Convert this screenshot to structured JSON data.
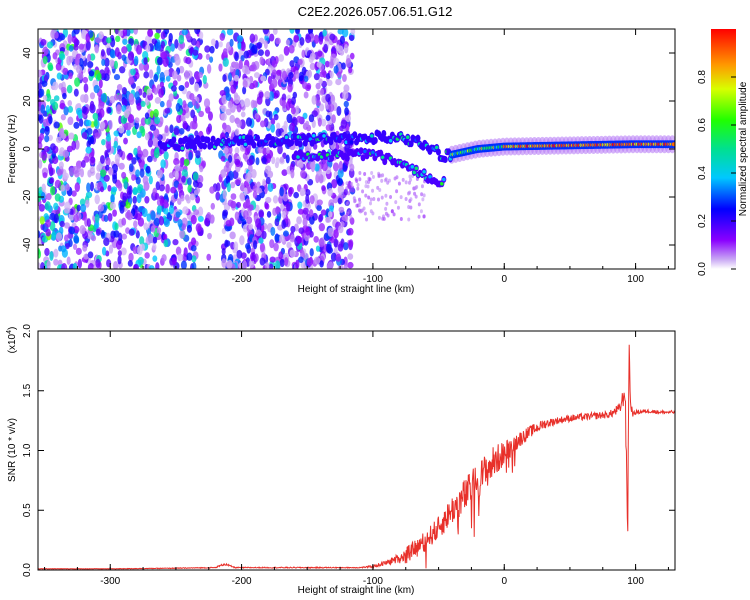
{
  "figure": {
    "title": "C2E2.2026.057.06.51.G12"
  },
  "chart_data": [
    {
      "type": "heatmap",
      "name": "spectrogram",
      "xlabel": "Height of straight line (km)",
      "ylabel": "Frequency (Hz)",
      "xlim": [
        -355,
        130
      ],
      "ylim": [
        -50,
        50
      ],
      "xticks": [
        -300,
        -200,
        -100,
        0,
        100
      ],
      "yticks": [
        -40,
        -20,
        0,
        20,
        40
      ],
      "xtick_labels": [
        "-300",
        "-200",
        "-100",
        "0",
        "100"
      ],
      "ytick_labels": [
        "-40",
        "-20",
        "0",
        "20",
        "40"
      ],
      "colorbar": {
        "label": "Normalized spectral amplitude",
        "range": [
          0,
          1
        ],
        "ticks": [
          0.0,
          0.2,
          0.4,
          0.6,
          0.8
        ],
        "tick_labels": [
          "0.0",
          "0.2",
          "0.4",
          "0.6",
          "0.8"
        ]
      },
      "features": {
        "noise_region_km": [
          -355,
          -115
        ],
        "gap_region_km": [
          -230,
          -215
        ],
        "signal_band": [
          {
            "x": -260,
            "f": 2
          },
          {
            "x": -200,
            "f": 3
          },
          {
            "x": -150,
            "f": 4
          },
          {
            "x": -100,
            "f": 5
          },
          {
            "x": -70,
            "f": 4
          },
          {
            "x": -45,
            "f": -3
          },
          {
            "x": -20,
            "f": 0
          },
          {
            "x": 0,
            "f": 1
          },
          {
            "x": 50,
            "f": 1.5
          },
          {
            "x": 100,
            "f": 2
          },
          {
            "x": 130,
            "f": 2
          }
        ],
        "split_lower_branch": [
          {
            "x": -150,
            "f": -3
          },
          {
            "x": -100,
            "f": -2
          },
          {
            "x": -70,
            "f": -8
          },
          {
            "x": -50,
            "f": -14
          }
        ],
        "tail": [
          {
            "x": -30,
            "f": -25
          },
          {
            "x": -25,
            "f": -37
          }
        ]
      }
    },
    {
      "type": "line",
      "name": "snr",
      "xlabel": "Height of straight line (km)",
      "ylabel": "SNR (10 * v/v)",
      "multiplier_label": "(x10",
      "multiplier_exp": "4",
      "multiplier_close": ")",
      "xlim": [
        -355,
        130
      ],
      "ylim": [
        0,
        2.0
      ],
      "xticks": [
        -300,
        -200,
        -100,
        0,
        100
      ],
      "yticks": [
        0.0,
        0.5,
        1.0,
        1.5,
        2.0
      ],
      "xtick_labels": [
        "-300",
        "-200",
        "-100",
        "0",
        "100"
      ],
      "ytick_labels": [
        "0.0",
        "0.5",
        "1.0",
        "1.5",
        "2.0"
      ],
      "color": "#e8302a",
      "series": [
        {
          "name": "SNR",
          "x": [
            -355,
            -300,
            -250,
            -220,
            -213,
            -205,
            -150,
            -110,
            -100,
            -90,
            -80,
            -70,
            -60,
            -50,
            -40,
            -30,
            -20,
            -10,
            0,
            10,
            20,
            30,
            40,
            50,
            60,
            70,
            80,
            88,
            92,
            94,
            95,
            96,
            98,
            100,
            110,
            120,
            130
          ],
          "y": [
            0.01,
            0.01,
            0.015,
            0.02,
            0.05,
            0.02,
            0.02,
            0.02,
            0.03,
            0.06,
            0.1,
            0.17,
            0.25,
            0.35,
            0.5,
            0.62,
            0.75,
            0.88,
            0.98,
            1.08,
            1.16,
            1.22,
            1.25,
            1.27,
            1.28,
            1.29,
            1.3,
            1.35,
            1.5,
            0.3,
            1.95,
            1.4,
            1.3,
            1.32,
            1.33,
            1.32,
            1.32
          ],
          "noise": [
            0.002,
            0.002,
            0.003,
            0.004,
            0.01,
            0.004,
            0.004,
            0.004,
            0.01,
            0.02,
            0.04,
            0.06,
            0.08,
            0.1,
            0.12,
            0.15,
            0.15,
            0.15,
            0.1,
            0.07,
            0.05,
            0.04,
            0.03,
            0.03,
            0.03,
            0.03,
            0.03,
            0.05,
            0.1,
            0.1,
            0.1,
            0.05,
            0.02,
            0.02,
            0.015,
            0.015,
            0.015
          ]
        }
      ]
    }
  ]
}
